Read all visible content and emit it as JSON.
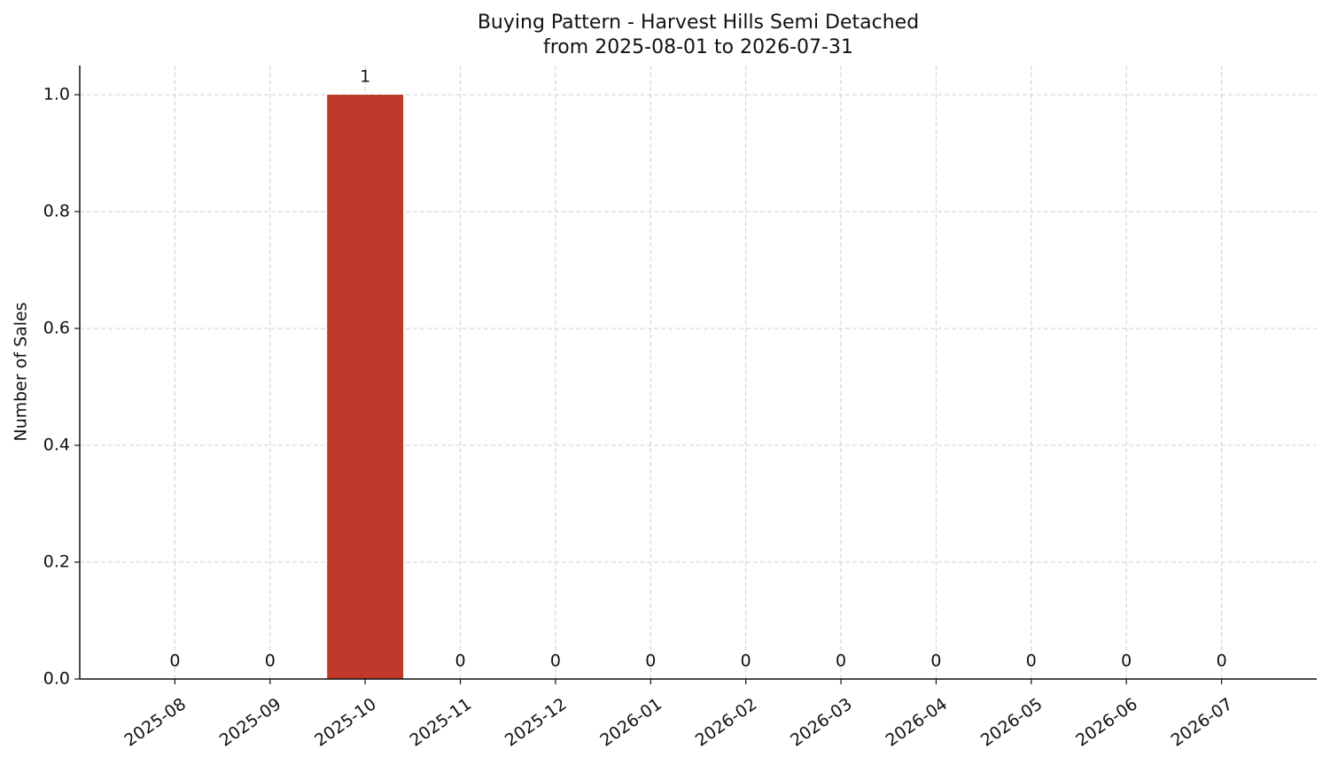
{
  "chart_data": {
    "type": "bar",
    "title": "Buying Pattern - Harvest Hills Semi Detached",
    "subtitle": "from 2025-08-01 to 2026-07-31",
    "y_label": "Number of Sales",
    "categories": [
      "2025-08",
      "2025-09",
      "2025-10",
      "2025-11",
      "2025-12",
      "2026-01",
      "2026-02",
      "2026-03",
      "2026-04",
      "2026-05",
      "2026-06",
      "2026-07"
    ],
    "values": [
      0,
      0,
      1,
      0,
      0,
      0,
      0,
      0,
      0,
      0,
      0,
      0
    ],
    "color": "#c0392b",
    "ylim": [
      0,
      1.05
    ],
    "yticks": [
      {
        "value": 0,
        "label": "0.0"
      },
      {
        "value": 0.2,
        "label": "0.2"
      },
      {
        "value": 0.4,
        "label": "0.4"
      },
      {
        "value": 0.6,
        "label": "0.6"
      },
      {
        "value": 0.8,
        "label": "0.8"
      },
      {
        "value": 1,
        "label": "1.0"
      }
    ],
    "grid": true
  }
}
